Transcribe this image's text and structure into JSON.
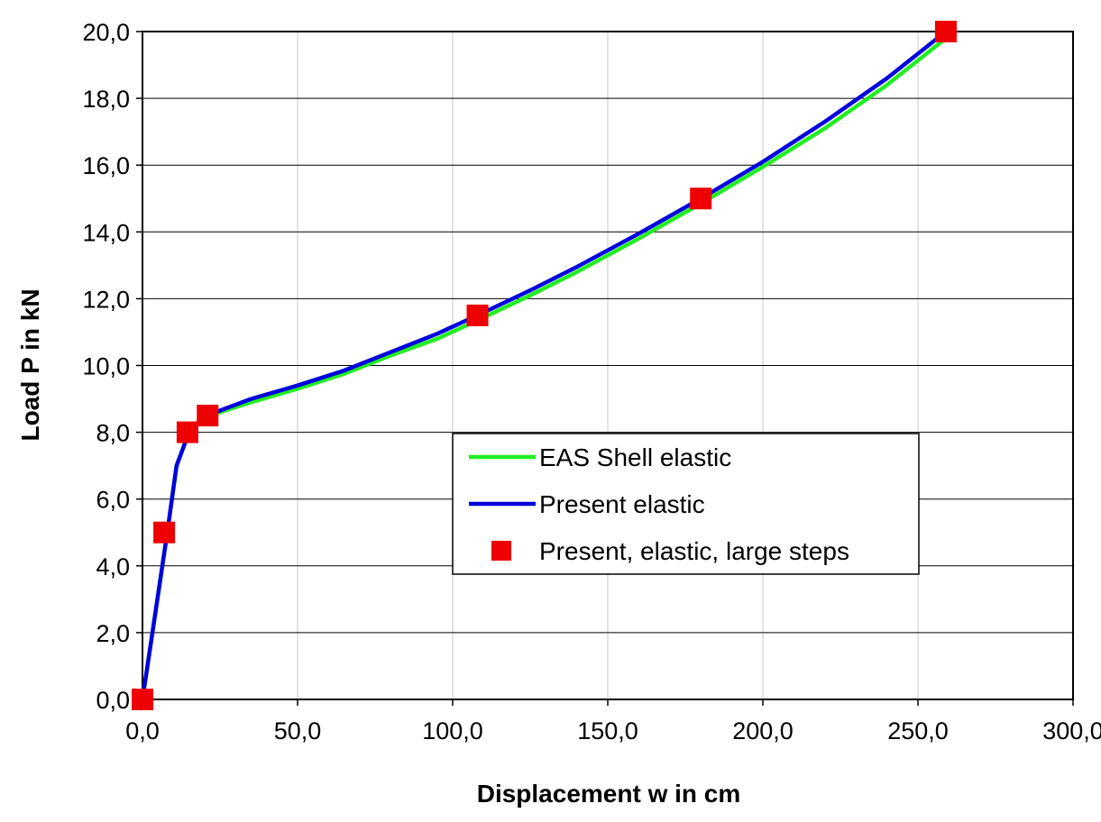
{
  "chart_data": {
    "type": "line",
    "title": "",
    "xlabel": "Displacement w in  cm",
    "ylabel": "Load  P in  kN",
    "xlim": [
      0,
      300
    ],
    "ylim": [
      0,
      20
    ],
    "x_ticks": [
      0,
      50,
      100,
      150,
      200,
      250,
      300
    ],
    "y_ticks": [
      0,
      2,
      4,
      6,
      8,
      10,
      12,
      14,
      16,
      18,
      20
    ],
    "x_tick_labels": [
      "0,0",
      "50,0",
      "100,0",
      "150,0",
      "200,0",
      "250,0",
      "300,0"
    ],
    "y_tick_labels": [
      "0,0",
      "2,0",
      "4,0",
      "6,0",
      "8,0",
      "10,0",
      "12,0",
      "14,0",
      "16,0",
      "18,0",
      "20,0"
    ],
    "grid": true,
    "legend_position": "center-right",
    "series": [
      {
        "name": "EAS Shell elastic",
        "style": "line",
        "color": "#22ee22",
        "x": [
          0,
          4,
          8,
          11,
          15,
          18,
          21,
          25,
          35,
          50,
          65,
          80,
          95,
          108,
          125,
          140,
          160,
          180,
          200,
          220,
          240,
          259
        ],
        "y": [
          0,
          2.5,
          5,
          7,
          8,
          8.3,
          8.5,
          8.6,
          8.9,
          9.3,
          9.75,
          10.3,
          10.8,
          11.35,
          12.1,
          12.8,
          13.8,
          14.85,
          15.95,
          17.1,
          18.4,
          19.8
        ]
      },
      {
        "name": "Present elastic",
        "style": "line",
        "color": "#0000dd",
        "x": [
          0,
          4,
          8,
          11,
          15,
          18,
          21,
          25,
          35,
          50,
          65,
          80,
          95,
          108,
          125,
          140,
          160,
          180,
          200,
          220,
          240,
          259
        ],
        "y": [
          0,
          2.5,
          5,
          7,
          8,
          8.3,
          8.5,
          8.65,
          9,
          9.4,
          9.85,
          10.4,
          10.95,
          11.5,
          12.25,
          12.95,
          13.95,
          15,
          16.1,
          17.3,
          18.6,
          20
        ]
      },
      {
        "name": "Present, elastic, large steps",
        "style": "markers",
        "color": "#ee0000",
        "x": [
          0,
          7,
          14.5,
          21,
          108,
          180,
          259
        ],
        "y": [
          0,
          5,
          8,
          8.5,
          11.5,
          15,
          20
        ]
      }
    ]
  }
}
